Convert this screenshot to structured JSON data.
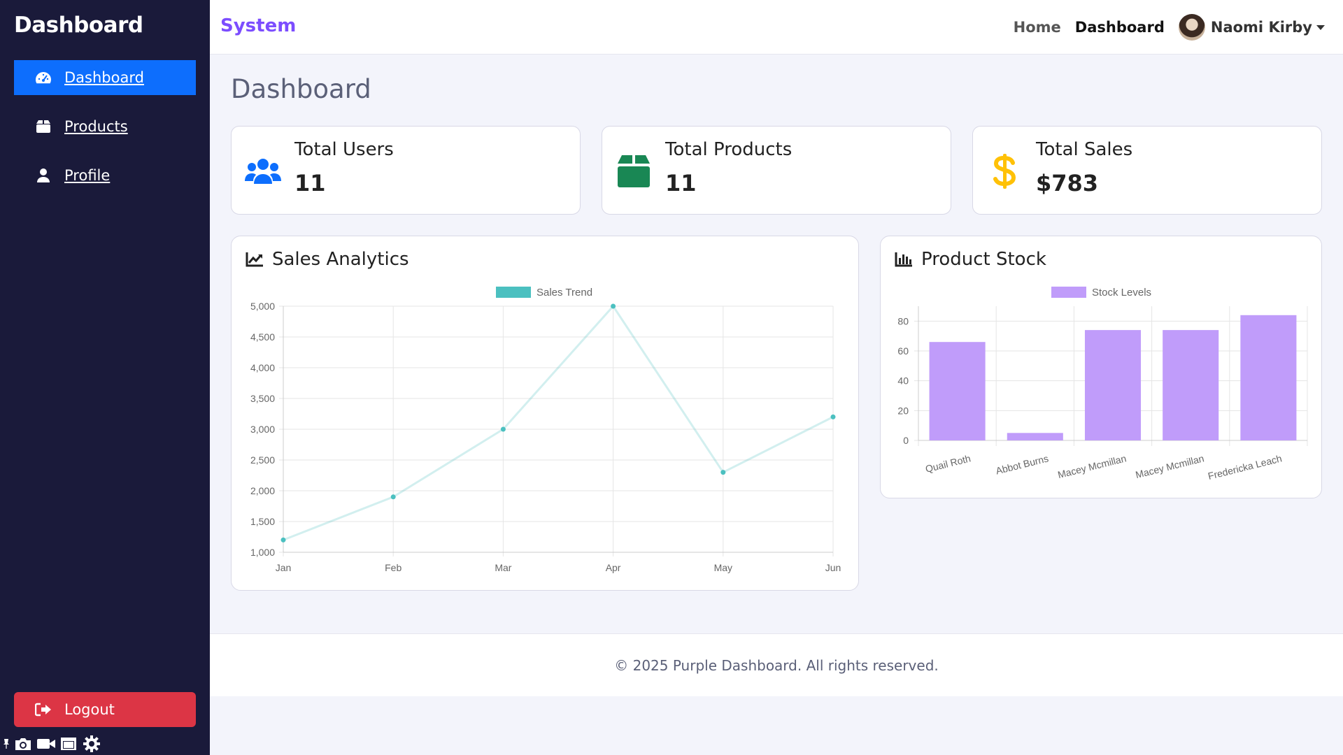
{
  "sidebar": {
    "brand": "Dashboard",
    "items": [
      {
        "label": "Dashboard",
        "icon": "gauge-icon",
        "active": true
      },
      {
        "label": "Products",
        "icon": "box-icon",
        "active": false
      },
      {
        "label": "Profile",
        "icon": "user-icon",
        "active": false
      }
    ],
    "logout_label": "Logout"
  },
  "topbar": {
    "title": "System",
    "links": [
      {
        "label": "Home",
        "active": false
      },
      {
        "label": "Dashboard",
        "active": true
      }
    ],
    "user_name": "Naomi Kirby"
  },
  "main": {
    "page_title": "Dashboard",
    "stats": [
      {
        "label": "Total Users",
        "value": "11",
        "icon": "users-icon",
        "color": "#0d6efd"
      },
      {
        "label": "Total Products",
        "value": "11",
        "icon": "box-open-icon",
        "color": "#198754"
      },
      {
        "label": "Total Sales",
        "value": "$783",
        "icon": "dollar-icon",
        "color": "#ffc107"
      }
    ],
    "sales_panel_title": "Sales Analytics",
    "stock_panel_title": "Product Stock"
  },
  "chart_data": [
    {
      "type": "line",
      "categories": [
        "Jan",
        "Feb",
        "Mar",
        "Apr",
        "May",
        "Jun"
      ],
      "series": [
        {
          "name": "Sales Trend",
          "values": [
            1200,
            1900,
            3000,
            5000,
            2300,
            3200
          ],
          "color": "#4bc0c0"
        }
      ],
      "ylim": [
        1000,
        5000
      ],
      "yticks": [
        "1,000",
        "1,500",
        "2,000",
        "2,500",
        "3,000",
        "3,500",
        "4,000",
        "4,500",
        "5,000"
      ],
      "grid": true,
      "legend": "top"
    },
    {
      "type": "bar",
      "categories": [
        "Quail Roth",
        "Abbot Burns",
        "Macey Mcmillan",
        "Macey Mcmillan",
        "Fredericka Leach"
      ],
      "series": [
        {
          "name": "Stock Levels",
          "values": [
            66,
            5,
            74,
            74,
            84
          ],
          "color": "#c09cfa"
        }
      ],
      "ylim": [
        0,
        90
      ],
      "yticks": [
        "0",
        "20",
        "40",
        "60",
        "80"
      ],
      "grid": true,
      "legend": "top"
    }
  ],
  "footer": {
    "text": "© 2025 Purple Dashboard. All rights reserved."
  }
}
